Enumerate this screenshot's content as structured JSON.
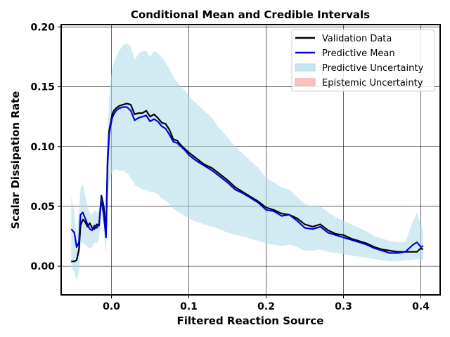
{
  "chart_data": {
    "type": "line",
    "title": "Conditional Mean and Credible Intervals",
    "xlabel": "Filtered Reaction Source",
    "ylabel": "Scalar Dissipation Rate",
    "xlim": [
      -0.065,
      0.425
    ],
    "ylim": [
      -0.024,
      0.202
    ],
    "xticks": [
      0.0,
      0.1,
      0.2,
      0.3,
      0.4
    ],
    "xtick_labels": [
      "0.0",
      "0.1",
      "0.2",
      "0.3",
      "0.4"
    ],
    "yticks": [
      0.0,
      0.05,
      0.1,
      0.15,
      0.2
    ],
    "ytick_labels": [
      "0.00",
      "0.05",
      "0.10",
      "0.15",
      "0.20"
    ],
    "grid": true,
    "legend_position": "top-right",
    "legend": [
      {
        "label": "Validation Data",
        "kind": "line",
        "color": "#000000"
      },
      {
        "label": "Predictive Mean",
        "kind": "line",
        "color": "#0000dd"
      },
      {
        "label": "Predictive Uncertainty",
        "kind": "patch",
        "color": "#add8e6"
      },
      {
        "label": "Epistemic Uncertainty",
        "kind": "patch",
        "color": "#f4a0a0"
      }
    ],
    "series": [
      {
        "name": "Validation Data",
        "color": "#000000",
        "x": [
          -0.052,
          -0.048,
          -0.045,
          -0.042,
          -0.04,
          -0.037,
          -0.034,
          -0.031,
          -0.028,
          -0.025,
          -0.022,
          -0.019,
          -0.016,
          -0.013,
          -0.01,
          -0.007,
          -0.005,
          -0.003,
          -0.001,
          0.001,
          0.003,
          0.006,
          0.01,
          0.015,
          0.02,
          0.025,
          0.03,
          0.035,
          0.04,
          0.045,
          0.05,
          0.055,
          0.06,
          0.065,
          0.07,
          0.075,
          0.08,
          0.085,
          0.09,
          0.095,
          0.1,
          0.11,
          0.12,
          0.13,
          0.14,
          0.15,
          0.16,
          0.17,
          0.18,
          0.19,
          0.2,
          0.21,
          0.22,
          0.23,
          0.24,
          0.25,
          0.26,
          0.27,
          0.28,
          0.29,
          0.3,
          0.31,
          0.32,
          0.33,
          0.34,
          0.35,
          0.36,
          0.37,
          0.38,
          0.39,
          0.395,
          0.4,
          0.403
        ],
        "values": [
          0.004,
          0.004,
          0.005,
          0.014,
          0.034,
          0.039,
          0.037,
          0.033,
          0.036,
          0.032,
          0.031,
          0.035,
          0.034,
          0.059,
          0.05,
          0.028,
          0.09,
          0.113,
          0.12,
          0.127,
          0.13,
          0.132,
          0.134,
          0.135,
          0.136,
          0.135,
          0.127,
          0.128,
          0.128,
          0.13,
          0.125,
          0.127,
          0.124,
          0.12,
          0.119,
          0.114,
          0.106,
          0.105,
          0.101,
          0.098,
          0.095,
          0.09,
          0.085,
          0.082,
          0.077,
          0.072,
          0.066,
          0.062,
          0.058,
          0.054,
          0.049,
          0.047,
          0.044,
          0.043,
          0.04,
          0.035,
          0.033,
          0.035,
          0.03,
          0.027,
          0.026,
          0.023,
          0.021,
          0.019,
          0.016,
          0.014,
          0.013,
          0.012,
          0.012,
          0.012,
          0.012,
          0.015,
          0.014
        ]
      },
      {
        "name": "Predictive Mean",
        "color": "#0000dd",
        "x": [
          -0.052,
          -0.048,
          -0.045,
          -0.042,
          -0.04,
          -0.037,
          -0.034,
          -0.031,
          -0.028,
          -0.025,
          -0.022,
          -0.019,
          -0.016,
          -0.013,
          -0.01,
          -0.007,
          -0.005,
          -0.003,
          -0.001,
          0.001,
          0.003,
          0.006,
          0.01,
          0.015,
          0.02,
          0.025,
          0.03,
          0.035,
          0.04,
          0.045,
          0.05,
          0.055,
          0.06,
          0.065,
          0.07,
          0.075,
          0.08,
          0.085,
          0.09,
          0.095,
          0.1,
          0.11,
          0.12,
          0.13,
          0.14,
          0.15,
          0.16,
          0.17,
          0.18,
          0.19,
          0.2,
          0.21,
          0.22,
          0.23,
          0.24,
          0.25,
          0.26,
          0.27,
          0.28,
          0.29,
          0.3,
          0.31,
          0.32,
          0.33,
          0.34,
          0.35,
          0.36,
          0.37,
          0.38,
          0.39,
          0.395,
          0.4,
          0.403
        ],
        "values": [
          0.031,
          0.028,
          0.016,
          0.02,
          0.043,
          0.045,
          0.04,
          0.035,
          0.031,
          0.03,
          0.034,
          0.032,
          0.035,
          0.056,
          0.043,
          0.024,
          0.085,
          0.11,
          0.118,
          0.124,
          0.127,
          0.13,
          0.132,
          0.133,
          0.133,
          0.13,
          0.122,
          0.124,
          0.125,
          0.126,
          0.121,
          0.123,
          0.121,
          0.117,
          0.115,
          0.11,
          0.104,
          0.103,
          0.1,
          0.097,
          0.093,
          0.088,
          0.084,
          0.08,
          0.075,
          0.07,
          0.064,
          0.061,
          0.057,
          0.053,
          0.047,
          0.046,
          0.042,
          0.043,
          0.038,
          0.032,
          0.031,
          0.033,
          0.028,
          0.026,
          0.024,
          0.022,
          0.02,
          0.018,
          0.015,
          0.013,
          0.011,
          0.011,
          0.012,
          0.018,
          0.02,
          0.016,
          0.017
        ]
      }
    ],
    "band": {
      "name": "Predictive Uncertainty",
      "color": "#add8e6",
      "x": [
        -0.052,
        -0.048,
        -0.045,
        -0.042,
        -0.04,
        -0.037,
        -0.034,
        -0.031,
        -0.028,
        -0.025,
        -0.022,
        -0.019,
        -0.016,
        -0.013,
        -0.01,
        -0.007,
        -0.005,
        -0.003,
        -0.001,
        0.001,
        0.003,
        0.006,
        0.01,
        0.015,
        0.02,
        0.025,
        0.03,
        0.035,
        0.04,
        0.045,
        0.05,
        0.055,
        0.06,
        0.065,
        0.07,
        0.075,
        0.08,
        0.085,
        0.09,
        0.095,
        0.1,
        0.11,
        0.12,
        0.13,
        0.14,
        0.15,
        0.16,
        0.17,
        0.18,
        0.19,
        0.2,
        0.21,
        0.22,
        0.23,
        0.24,
        0.25,
        0.26,
        0.27,
        0.28,
        0.29,
        0.3,
        0.31,
        0.32,
        0.33,
        0.34,
        0.35,
        0.36,
        0.37,
        0.38,
        0.39,
        0.395,
        0.4,
        0.403
      ],
      "upper": [
        0.058,
        0.045,
        0.025,
        0.045,
        0.065,
        0.068,
        0.06,
        0.05,
        0.045,
        0.043,
        0.047,
        0.045,
        0.048,
        0.06,
        0.055,
        0.04,
        0.11,
        0.14,
        0.155,
        0.165,
        0.17,
        0.175,
        0.18,
        0.185,
        0.186,
        0.184,
        0.172,
        0.178,
        0.18,
        0.18,
        0.175,
        0.18,
        0.178,
        0.175,
        0.17,
        0.165,
        0.158,
        0.154,
        0.15,
        0.147,
        0.142,
        0.136,
        0.13,
        0.124,
        0.115,
        0.108,
        0.1,
        0.094,
        0.088,
        0.082,
        0.074,
        0.07,
        0.066,
        0.064,
        0.058,
        0.052,
        0.05,
        0.05,
        0.045,
        0.041,
        0.038,
        0.035,
        0.032,
        0.029,
        0.025,
        0.023,
        0.021,
        0.02,
        0.02,
        0.038,
        0.045,
        0.035,
        0.03
      ],
      "lower": [
        0.0,
        -0.005,
        -0.012,
        -0.005,
        0.018,
        0.02,
        0.018,
        0.016,
        0.015,
        0.016,
        0.02,
        0.019,
        0.022,
        0.048,
        0.032,
        0.01,
        0.058,
        0.07,
        0.075,
        0.079,
        0.08,
        0.081,
        0.08,
        0.08,
        0.078,
        0.074,
        0.068,
        0.066,
        0.064,
        0.064,
        0.062,
        0.062,
        0.06,
        0.057,
        0.055,
        0.052,
        0.048,
        0.046,
        0.044,
        0.042,
        0.04,
        0.037,
        0.035,
        0.033,
        0.031,
        0.028,
        0.026,
        0.025,
        0.023,
        0.021,
        0.019,
        0.018,
        0.017,
        0.018,
        0.016,
        0.013,
        0.013,
        0.014,
        0.012,
        0.011,
        0.01,
        0.009,
        0.008,
        0.007,
        0.006,
        0.005,
        0.004,
        0.004,
        0.005,
        0.005,
        0.006,
        0.005,
        0.006
      ]
    }
  }
}
